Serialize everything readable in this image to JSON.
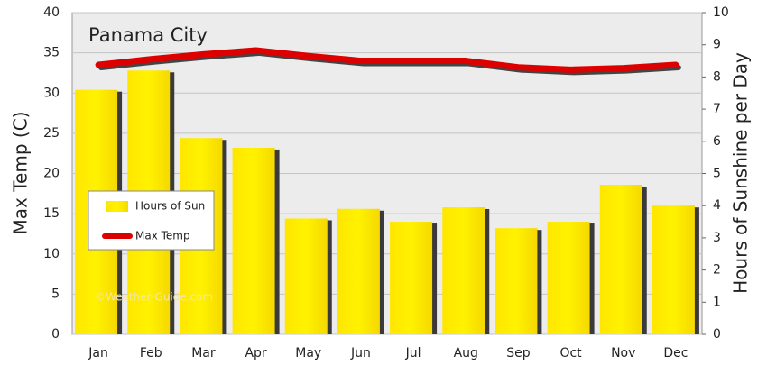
{
  "chart_data": {
    "type": "bar",
    "title": "Panama City",
    "ylabel": "Max Temp (C)",
    "y2label": "Hours of Sunshine per Day",
    "watermark": "©Weather-Guide.com",
    "categories": [
      "Jan",
      "Feb",
      "Mar",
      "Apr",
      "May",
      "Jun",
      "Jul",
      "Aug",
      "Sep",
      "Oct",
      "Nov",
      "Dec"
    ],
    "series": [
      {
        "name": "Hours of Sun",
        "type": "bar",
        "axis": "y2",
        "color": "#ffee00",
        "values": [
          7.6,
          8.2,
          6.1,
          5.8,
          3.6,
          3.9,
          3.5,
          3.95,
          3.3,
          3.5,
          4.65,
          4.0
        ]
      },
      {
        "name": "Max Temp",
        "type": "line",
        "color": "#dd0000",
        "values": [
          33.5,
          34.2,
          34.8,
          35.3,
          34.6,
          34.0,
          34.0,
          34.0,
          33.2,
          32.9,
          33.1,
          33.5
        ]
      }
    ],
    "ylim": [
      0,
      40
    ],
    "yticks": [
      0,
      5,
      10,
      15,
      20,
      25,
      30,
      35,
      40
    ],
    "y2lim": [
      0,
      10
    ],
    "y2ticks": [
      0,
      1,
      2,
      3,
      4,
      5,
      6,
      7,
      8,
      9,
      10
    ],
    "grid": true,
    "legend": "left"
  }
}
